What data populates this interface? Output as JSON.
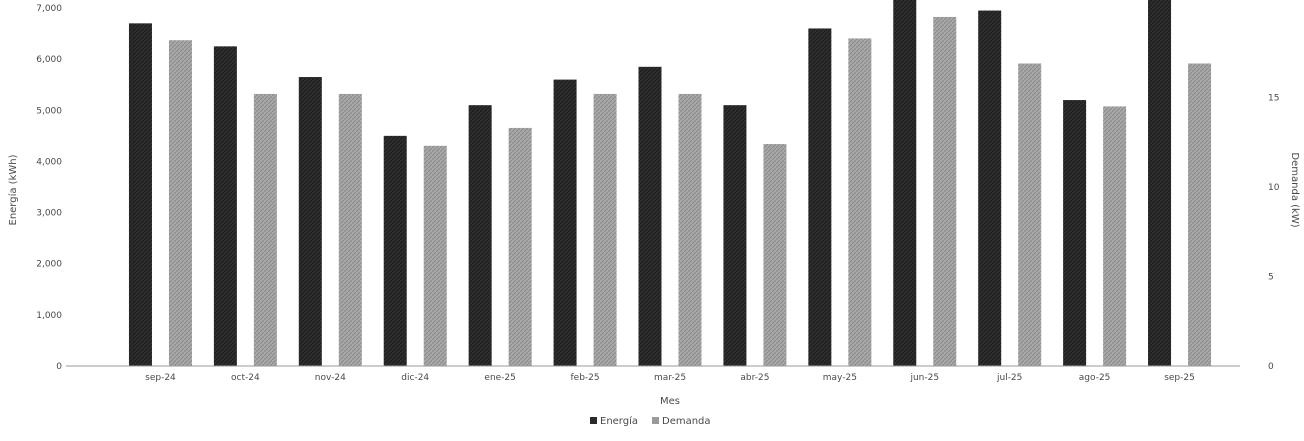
{
  "chart_data": {
    "type": "bar",
    "xlabel": "Mes",
    "ylabel": "Energía (kWh)",
    "y2label": "Demanda (kW)",
    "categories": [
      "sep-24",
      "oct-24",
      "nov-24",
      "dic-24",
      "ene-25",
      "feb-25",
      "mar-25",
      "abr-25",
      "may-25",
      "jun-25",
      "jul-25",
      "ago-25",
      "sep-25"
    ],
    "series": [
      {
        "name": "Energía",
        "color": "#2b2b2b",
        "values": [
          6700,
          6250,
          5650,
          4500,
          5100,
          5600,
          5850,
          5100,
          6600,
          7250,
          6950,
          5200,
          7200
        ]
      },
      {
        "name": "Demanda",
        "color": "#9a9a9a",
        "values": [
          18.2,
          15.2,
          15.2,
          12.3,
          13.3,
          15.2,
          15.2,
          12.4,
          18.3,
          19.5,
          16.9,
          14.5,
          16.9
        ]
      }
    ],
    "ylim": [
      0,
      7000
    ],
    "y2lim": [
      0,
      20
    ],
    "y_ticks": [
      "0",
      "1,000",
      "2,000",
      "3,000",
      "4,000",
      "5,000",
      "6,000",
      "7,000"
    ],
    "y2_ticks": [
      "0",
      "5",
      "10",
      "15"
    ],
    "y2_tick_values": [
      0,
      5,
      10,
      15
    ],
    "legend": {
      "placement": "bottom",
      "items": [
        "Energía",
        "Demanda"
      ]
    },
    "grid": false
  }
}
